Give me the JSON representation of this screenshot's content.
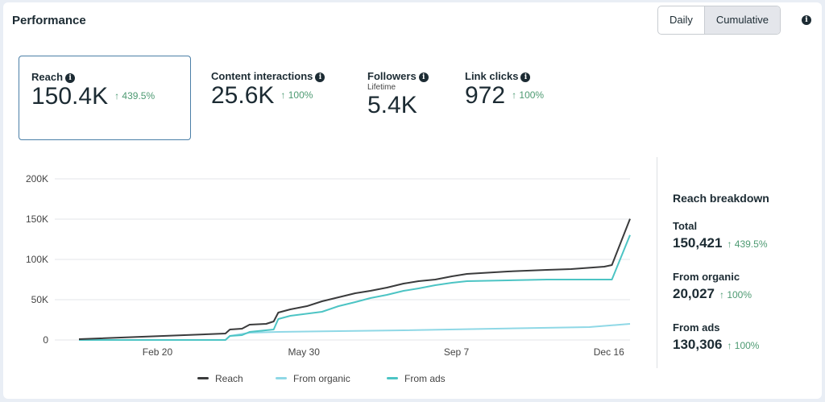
{
  "header": {
    "title": "Performance",
    "toggle": {
      "options": [
        "Daily",
        "Cumulative"
      ],
      "selected": "Cumulative"
    },
    "info_icon": "info-icon"
  },
  "metrics": [
    {
      "label": "Reach",
      "value": "150.4K",
      "change": "↑ 439.5%",
      "selected": true
    },
    {
      "label": "Content interactions",
      "value": "25.6K",
      "change": "↑ 100%"
    },
    {
      "label": "Followers",
      "sublabel": "Lifetime",
      "value": "5.4K"
    },
    {
      "label": "Link clicks",
      "value": "972",
      "change": "↑ 100%"
    }
  ],
  "breakdown": {
    "title": "Reach breakdown",
    "items": [
      {
        "label": "Total",
        "value": "150,421",
        "change": "↑ 439.5%"
      },
      {
        "label": "From organic",
        "value": "20,027",
        "change": "↑ 100%"
      },
      {
        "label": "From ads",
        "value": "130,306",
        "change": "↑ 100%"
      }
    ]
  },
  "chart_data": {
    "type": "line",
    "title": "",
    "xlabel": "",
    "ylabel": "",
    "ylim": [
      0,
      200000
    ],
    "yticks": [
      0,
      50000,
      100000,
      150000,
      200000
    ],
    "ytick_labels": [
      "0",
      "50K",
      "100K",
      "150K",
      "200K"
    ],
    "xlim": [
      0,
      365
    ],
    "xticks": [
      52,
      149,
      250,
      351
    ],
    "xtick_labels": [
      "Feb 20",
      "May 30",
      "Sep 7",
      "Dec 16"
    ],
    "grid": true,
    "legend": "bottom",
    "series": [
      {
        "name": "Reach",
        "color": "#3a3b3c",
        "x": [
          0,
          97,
          100,
          108,
          113,
          124,
          129,
          132,
          140,
          151,
          161,
          172,
          183,
          193,
          204,
          215,
          225,
          236,
          247,
          257,
          284,
          310,
          326,
          348,
          353,
          365
        ],
        "y": [
          1000,
          8000,
          13000,
          14000,
          19000,
          20000,
          23000,
          34000,
          38000,
          42000,
          48000,
          53000,
          58000,
          61000,
          65000,
          70000,
          73000,
          75000,
          79000,
          82000,
          85000,
          87000,
          88000,
          91000,
          93000,
          150421
        ]
      },
      {
        "name": "From organic",
        "color": "#8fd8e6",
        "x": [
          0,
          97,
          100,
          113,
          132,
          215,
          338,
          365
        ],
        "y": [
          0,
          0,
          5000,
          9000,
          10000,
          12000,
          16000,
          20027
        ]
      },
      {
        "name": "From ads",
        "color": "#4cc4c4",
        "x": [
          0,
          97,
          100,
          108,
          113,
          129,
          132,
          140,
          161,
          172,
          183,
          193,
          204,
          215,
          225,
          236,
          247,
          257,
          284,
          310,
          353,
          365
        ],
        "y": [
          0,
          0,
          5000,
          6000,
          10000,
          13000,
          26000,
          30000,
          35000,
          42000,
          47000,
          52000,
          56000,
          61000,
          64000,
          68000,
          71000,
          73000,
          74000,
          75000,
          75000,
          130306
        ]
      }
    ]
  }
}
